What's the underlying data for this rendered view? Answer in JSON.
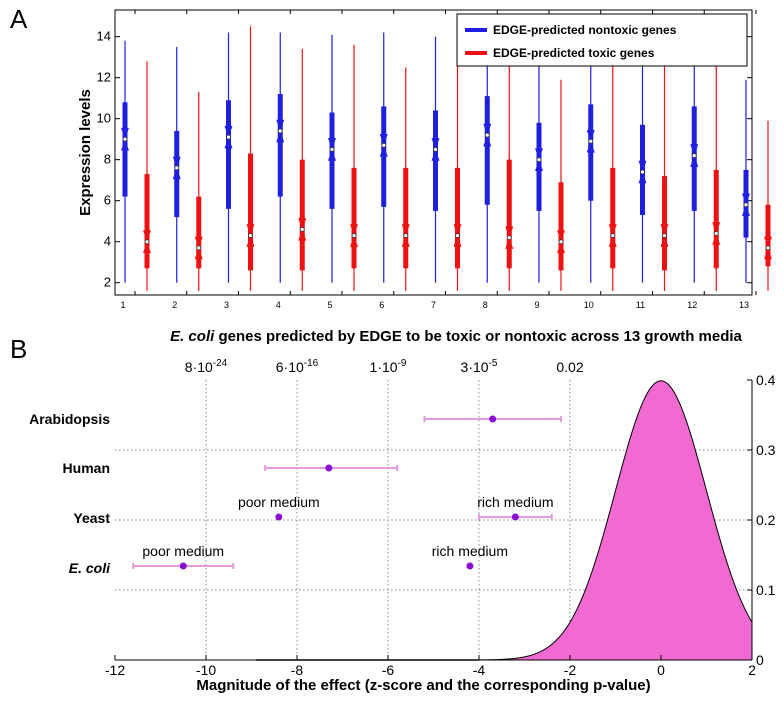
{
  "panel_a_letter": "A",
  "panel_b_letter": "B",
  "chart_data": [
    {
      "type": "box",
      "ylabel": "Expression levels",
      "xlabel_italic": "E. coli",
      "xlabel_rest": " genes predicted by EDGE to be toxic or nontoxic across 13 growth media",
      "ylim": [
        1.4,
        15.3
      ],
      "yticks": [
        2,
        4,
        6,
        8,
        10,
        12,
        14
      ],
      "categories": [
        "1",
        "2",
        "3",
        "4",
        "5",
        "6",
        "7",
        "8",
        "9",
        "10",
        "11",
        "12",
        "13"
      ],
      "legend_position": "top-right",
      "series": [
        {
          "name": "EDGE-predicted nontoxic genes",
          "color": "#1f1fe0",
          "whisker_low": [
            2.0,
            2.0,
            2.0,
            2.0,
            2.0,
            2.0,
            2.0,
            2.0,
            2.0,
            2.0,
            2.0,
            2.0,
            2.0
          ],
          "q1": [
            6.2,
            5.2,
            5.6,
            6.2,
            5.6,
            5.7,
            5.5,
            5.8,
            5.5,
            6.0,
            5.3,
            5.5,
            4.2
          ],
          "median": [
            9.0,
            7.6,
            9.1,
            9.4,
            8.5,
            8.7,
            8.5,
            9.2,
            8.0,
            8.9,
            7.4,
            8.2,
            5.8
          ],
          "q3": [
            10.8,
            9.4,
            10.9,
            11.2,
            10.3,
            10.6,
            10.4,
            11.1,
            9.8,
            10.7,
            9.7,
            10.6,
            7.5
          ],
          "whisker_high": [
            13.8,
            13.5,
            14.2,
            14.2,
            14.1,
            14.2,
            14.0,
            14.3,
            13.8,
            14.1,
            14.2,
            14.1,
            11.9
          ]
        },
        {
          "name": "EDGE-predicted toxic genes",
          "color": "#ee1111",
          "whisker_low": [
            1.6,
            1.6,
            1.6,
            1.6,
            1.6,
            1.6,
            1.6,
            1.6,
            1.6,
            1.6,
            1.6,
            1.6,
            1.6
          ],
          "q1": [
            2.7,
            2.7,
            2.6,
            2.6,
            2.7,
            2.7,
            2.7,
            2.7,
            2.6,
            2.7,
            2.6,
            2.7,
            2.8
          ],
          "median": [
            4.0,
            3.7,
            4.3,
            4.6,
            4.3,
            4.3,
            4.3,
            4.2,
            4.0,
            4.3,
            4.3,
            4.4,
            3.7
          ],
          "q3": [
            7.3,
            6.2,
            8.3,
            8.0,
            7.6,
            7.6,
            7.6,
            8.0,
            6.9,
            7.6,
            7.2,
            7.5,
            5.8
          ],
          "whisker_high": [
            12.8,
            11.3,
            14.5,
            13.4,
            13.6,
            12.5,
            14.1,
            14.3,
            11.9,
            14.2,
            12.8,
            14.2,
            9.9
          ]
        }
      ]
    },
    {
      "type": "forest_with_density",
      "xlabel": "Magnitude of the effect (z-score and the corresponding p-value)",
      "xlim": [
        -12,
        2
      ],
      "xticks": [
        -12,
        -10,
        -8,
        -6,
        -4,
        -2,
        0,
        2
      ],
      "top_tick_positions": [
        -10,
        -8,
        -6,
        -4,
        -2
      ],
      "top_tick_labels": [
        {
          "base": "8·10",
          "exp": "-24"
        },
        {
          "base": "6·10",
          "exp": "-16"
        },
        {
          "base": "1·10",
          "exp": "-9"
        },
        {
          "base": "3·10",
          "exp": "-5"
        },
        {
          "base": "0.02",
          "exp": ""
        }
      ],
      "right_ylim": [
        0,
        0.4
      ],
      "right_yticks": [
        0,
        0.1,
        0.2,
        0.3,
        0.4
      ],
      "density_color": "#f06ad2",
      "point_color": "#8a0fd0",
      "errorbar_color": "#e59ae0",
      "organisms": [
        "Arabidopsis",
        "Human",
        "Yeast",
        "E. coli"
      ],
      "points": [
        {
          "organism": "Arabidopsis",
          "z": -3.7,
          "ci": [
            -5.2,
            -2.2
          ],
          "label": ""
        },
        {
          "organism": "Human",
          "z": -7.3,
          "ci": [
            -8.7,
            -5.8
          ],
          "label": ""
        },
        {
          "organism": "Yeast",
          "z": -8.4,
          "ci": null,
          "label": "poor medium"
        },
        {
          "organism": "Yeast",
          "z": -3.2,
          "ci": [
            -4.0,
            -2.4
          ],
          "label": "rich medium"
        },
        {
          "organism": "E. coli",
          "z": -10.5,
          "ci": [
            -11.6,
            -9.4
          ],
          "label": "poor medium"
        },
        {
          "organism": "E. coli",
          "z": -4.2,
          "ci": null,
          "label": "rich medium"
        }
      ]
    }
  ]
}
